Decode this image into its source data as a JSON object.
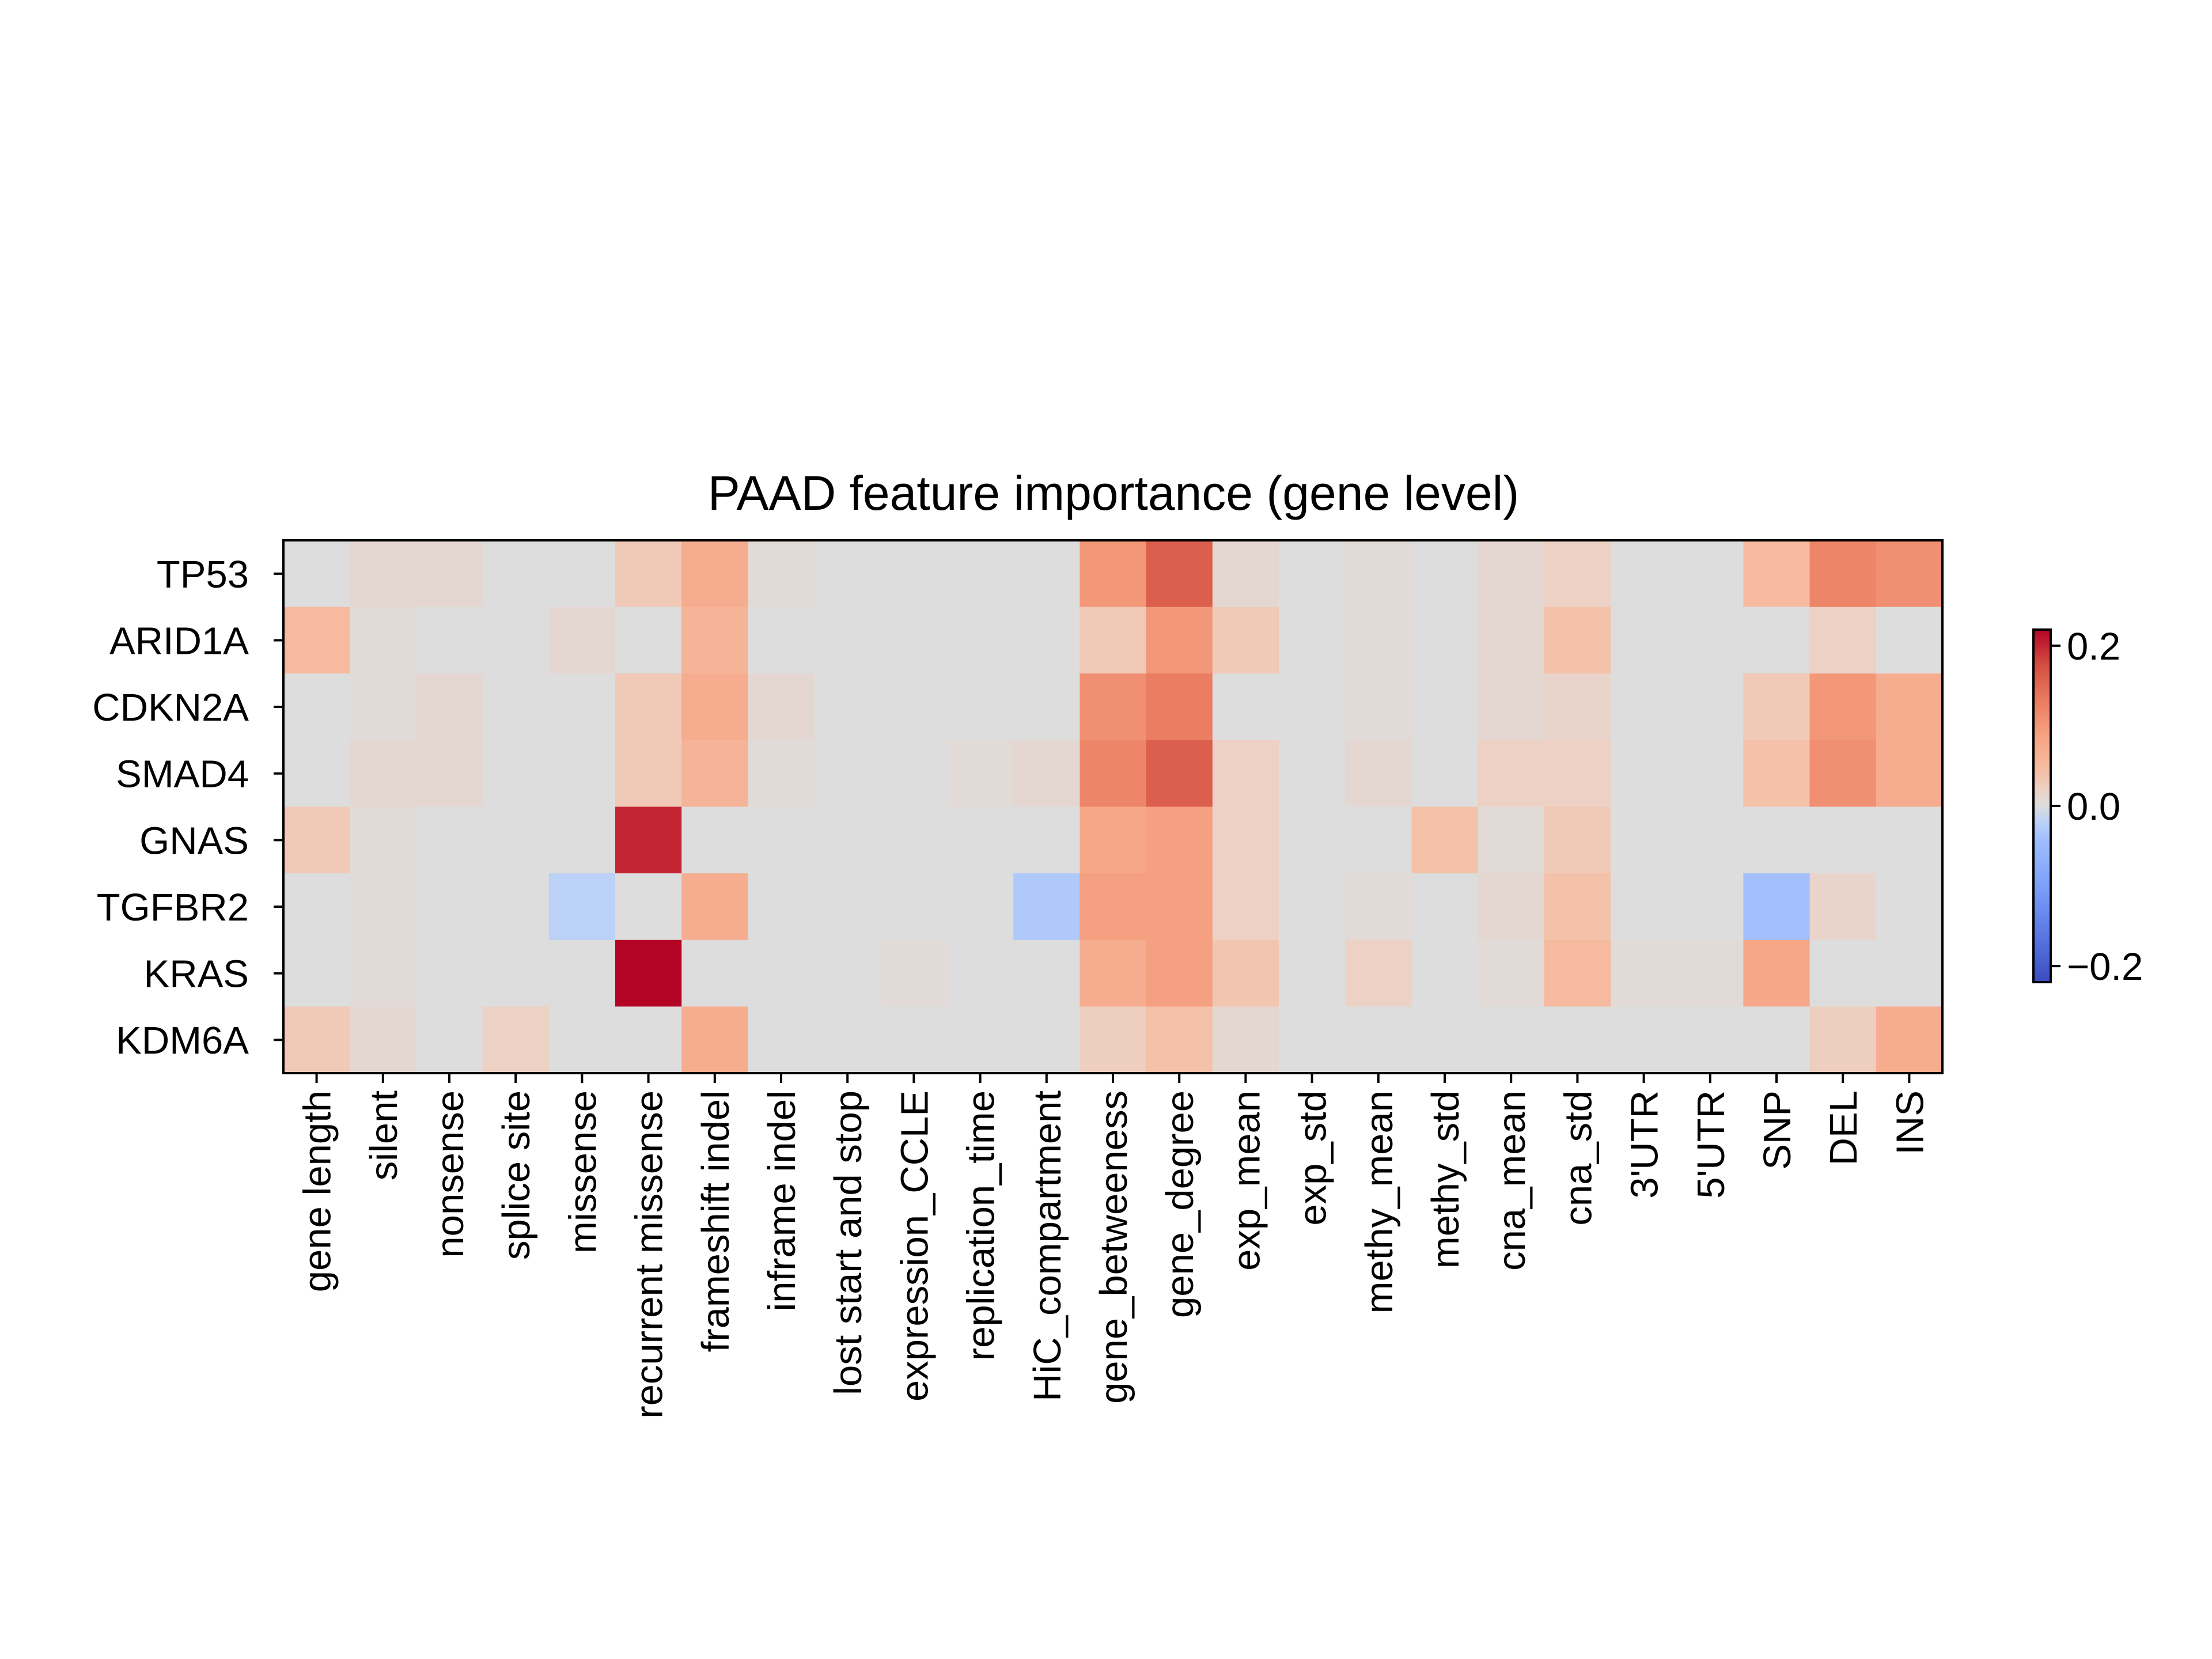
{
  "chart_data": {
    "type": "heatmap",
    "title": "PAAD feature importance (gene level)",
    "xlabel": "",
    "ylabel": "",
    "rows": [
      "TP53",
      "ARID1A",
      "CDKN2A",
      "SMAD4",
      "GNAS",
      "TGFBR2",
      "KRAS",
      "KDM6A"
    ],
    "columns": [
      "gene length",
      "silent",
      "nonsense",
      "splice site",
      "missense",
      "recurrent missense",
      "frameshift indel",
      "inframe indel",
      "lost start and stop",
      "expression_CCLE",
      "replication_time",
      "HiC_compartment",
      "gene_betweeness",
      "gene_degree",
      "exp_mean",
      "exp_std",
      "methy_mean",
      "methy_std",
      "cna_mean",
      "cna_std",
      "3'UTR",
      "5'UTR",
      "SNP",
      "DEL",
      "INS"
    ],
    "values": [
      [
        0.0,
        0.01,
        0.01,
        0.0,
        0.0,
        0.03,
        0.07,
        0.005,
        0.0,
        0.0,
        0.0,
        0.0,
        0.1,
        0.16,
        0.01,
        0.0,
        0.005,
        0.0,
        0.01,
        0.02,
        0.0,
        0.0,
        0.05,
        0.12,
        0.11
      ],
      [
        0.05,
        0.005,
        0.0,
        0.0,
        0.01,
        0.0,
        0.06,
        0.0,
        0.0,
        0.0,
        0.0,
        0.0,
        0.03,
        0.1,
        0.03,
        0.0,
        0.005,
        0.0,
        0.01,
        0.04,
        0.0,
        0.0,
        0.0,
        0.02,
        0.0
      ],
      [
        0.0,
        0.005,
        0.01,
        0.0,
        0.0,
        0.03,
        0.07,
        0.01,
        0.0,
        0.0,
        0.0,
        0.0,
        0.11,
        0.13,
        0.0,
        0.0,
        0.005,
        0.0,
        0.01,
        0.015,
        0.0,
        0.0,
        0.03,
        0.1,
        0.07
      ],
      [
        0.0,
        0.01,
        0.01,
        0.0,
        0.0,
        0.03,
        0.06,
        0.005,
        0.0,
        0.0,
        0.005,
        0.01,
        0.12,
        0.16,
        0.02,
        0.0,
        0.01,
        0.0,
        0.02,
        0.02,
        0.0,
        0.0,
        0.04,
        0.11,
        0.07
      ],
      [
        0.03,
        0.005,
        0.0,
        0.0,
        0.0,
        0.2,
        0.0,
        0.0,
        0.0,
        0.0,
        0.0,
        0.0,
        0.08,
        0.09,
        0.02,
        0.0,
        0.0,
        0.04,
        0.005,
        0.03,
        0.0,
        0.0,
        0.0,
        0.0,
        0.0
      ],
      [
        0.0,
        0.005,
        0.0,
        0.0,
        -0.02,
        0.0,
        0.07,
        0.0,
        0.0,
        0.0,
        0.0,
        -0.03,
        0.09,
        0.09,
        0.02,
        0.0,
        0.005,
        0.0,
        0.01,
        0.04,
        0.0,
        0.0,
        -0.04,
        0.015,
        0.0
      ],
      [
        0.0,
        0.005,
        0.0,
        0.0,
        0.0,
        0.22,
        0.0,
        0.0,
        0.0,
        0.005,
        0.0,
        0.0,
        0.07,
        0.09,
        0.035,
        0.0,
        0.02,
        0.0,
        0.005,
        0.05,
        0.005,
        0.005,
        0.08,
        0.0,
        0.0
      ],
      [
        0.03,
        0.01,
        0.0,
        0.02,
        0.0,
        0.0,
        0.07,
        0.0,
        0.0,
        0.0,
        0.0,
        0.0,
        0.025,
        0.04,
        0.01,
        0.0,
        0.0,
        0.0,
        0.0,
        0.0,
        0.0,
        0.0,
        0.0,
        0.025,
        0.07
      ]
    ],
    "colorbar": {
      "colormap": "coolwarm",
      "range": [
        -0.22,
        0.22
      ],
      "ticks": [
        0.2,
        0.0,
        -0.2
      ],
      "tick_labels": [
        "0.2",
        "0.0",
        "−0.2"
      ]
    },
    "grid": false,
    "colors": {
      "neutral": "#dddddd",
      "max": "#b40426",
      "min": "#3b4cc0"
    }
  }
}
